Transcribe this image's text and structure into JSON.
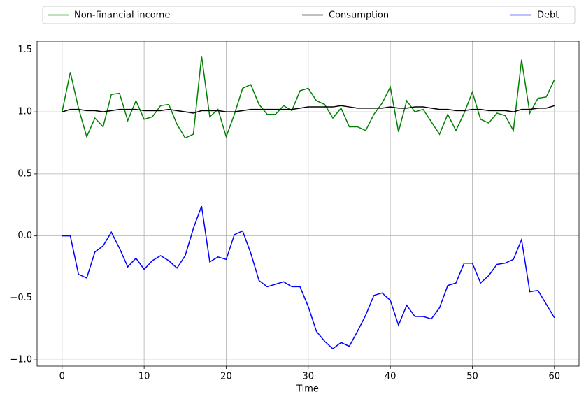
{
  "chart_data": {
    "type": "line",
    "x_label": "Time",
    "x": [
      0,
      1,
      2,
      3,
      4,
      5,
      6,
      7,
      8,
      9,
      10,
      11,
      12,
      13,
      14,
      15,
      16,
      17,
      18,
      19,
      20,
      21,
      22,
      23,
      24,
      25,
      26,
      27,
      28,
      29,
      30,
      31,
      32,
      33,
      34,
      35,
      36,
      37,
      38,
      39,
      40,
      41,
      42,
      43,
      44,
      45,
      46,
      47,
      48,
      49,
      50,
      51,
      52,
      53,
      54,
      55,
      56,
      57,
      58,
      59,
      60
    ],
    "series": [
      {
        "name": "Non-financial income",
        "color": "#008000",
        "values": [
          1.0,
          1.32,
          1.03,
          0.8,
          0.95,
          0.88,
          1.14,
          1.15,
          0.93,
          1.09,
          0.94,
          0.96,
          1.05,
          1.06,
          0.9,
          0.79,
          0.82,
          1.45,
          0.96,
          1.02,
          0.8,
          0.98,
          1.19,
          1.22,
          1.06,
          0.98,
          0.98,
          1.05,
          1.01,
          1.17,
          1.19,
          1.09,
          1.06,
          0.95,
          1.03,
          0.88,
          0.88,
          0.85,
          0.98,
          1.07,
          1.2,
          0.84,
          1.09,
          1.0,
          1.02,
          0.92,
          0.82,
          0.98,
          0.85,
          0.99,
          1.16,
          0.94,
          0.91,
          0.99,
          0.97,
          0.85,
          1.42,
          0.99,
          1.11,
          1.12,
          1.26
        ]
      },
      {
        "name": "Consumption",
        "color": "#000000",
        "values": [
          1.0,
          1.02,
          1.02,
          1.01,
          1.01,
          1.0,
          1.01,
          1.02,
          1.02,
          1.02,
          1.01,
          1.01,
          1.01,
          1.02,
          1.01,
          1.0,
          0.99,
          1.01,
          1.01,
          1.01,
          1.0,
          1.0,
          1.01,
          1.02,
          1.02,
          1.02,
          1.02,
          1.02,
          1.02,
          1.03,
          1.04,
          1.04,
          1.04,
          1.04,
          1.05,
          1.04,
          1.03,
          1.03,
          1.03,
          1.03,
          1.04,
          1.03,
          1.03,
          1.04,
          1.04,
          1.03,
          1.02,
          1.02,
          1.01,
          1.01,
          1.02,
          1.02,
          1.01,
          1.01,
          1.01,
          1.0,
          1.02,
          1.02,
          1.03,
          1.03,
          1.05
        ]
      },
      {
        "name": "Debt",
        "color": "#0000ff",
        "values": [
          0,
          0,
          -0.31,
          -0.34,
          -0.13,
          -0.08,
          0.03,
          -0.1,
          -0.25,
          -0.18,
          -0.27,
          -0.2,
          -0.16,
          -0.2,
          -0.26,
          -0.16,
          0.06,
          0.24,
          -0.21,
          -0.17,
          -0.19,
          0.01,
          0.04,
          -0.14,
          -0.36,
          -0.41,
          -0.39,
          -0.37,
          -0.41,
          -0.41,
          -0.57,
          -0.77,
          -0.85,
          -0.91,
          -0.86,
          -0.89,
          -0.77,
          -0.64,
          -0.48,
          -0.46,
          -0.52,
          -0.72,
          -0.56,
          -0.65,
          -0.65,
          -0.67,
          -0.58,
          -0.4,
          -0.38,
          -0.22,
          -0.22,
          -0.38,
          -0.32,
          -0.23,
          -0.22,
          -0.19,
          -0.03,
          -0.45,
          -0.44,
          -0.55,
          -0.66
        ]
      }
    ],
    "xlim": [
      -3.05,
      63
    ],
    "ylim": [
      -1.05,
      1.57
    ],
    "xticks": [
      0,
      10,
      20,
      30,
      40,
      50,
      60
    ],
    "yticks": [
      {
        "value": 1.5,
        "label": "1.5"
      },
      {
        "value": 1.0,
        "label": "1.0"
      },
      {
        "value": 0.5,
        "label": "0.5"
      },
      {
        "value": 0.0,
        "label": "0.0"
      },
      {
        "value": -0.5,
        "label": "−0.5"
      },
      {
        "value": -1.0,
        "label": "−1.0"
      }
    ],
    "grid": true,
    "legend": "top"
  }
}
